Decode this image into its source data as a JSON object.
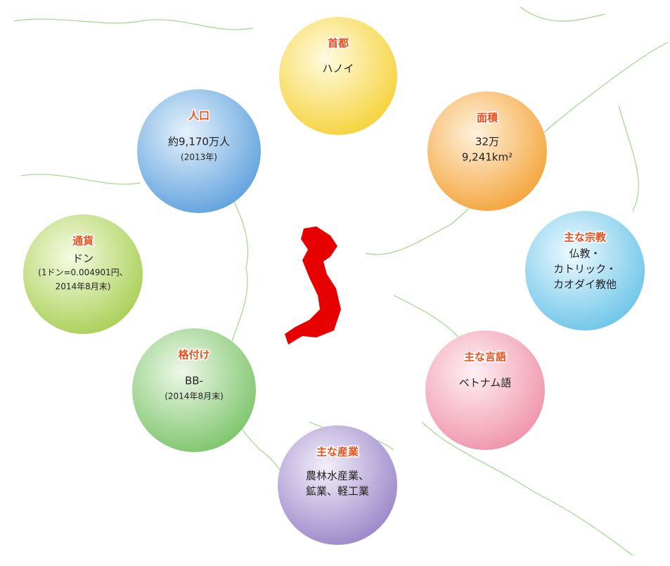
{
  "items": [
    {
      "title": "首都",
      "lines": [
        "ハノイ"
      ]
    },
    {
      "title": "人口",
      "lines": [
        "約9,170万人",
        "(2013年)"
      ]
    },
    {
      "title": "面積",
      "lines": [
        "32万",
        "9,241km²"
      ]
    },
    {
      "title": "通貨",
      "lines": [
        "ドン",
        "(1ドン=0.004901円、",
        "2014年8月末)"
      ]
    },
    {
      "title": "主な宗教",
      "lines": [
        "仏教・",
        "カトリック・",
        "カオダイ教他"
      ]
    },
    {
      "title": "格付け",
      "lines": [
        "BB-",
        "(2014年8月末)"
      ]
    },
    {
      "title": "主な言語",
      "lines": [
        "ベトナム語"
      ]
    },
    {
      "title": "主な産業",
      "lines": [
        "農林水産業、",
        "鉱業、軽工業"
      ]
    }
  ]
}
